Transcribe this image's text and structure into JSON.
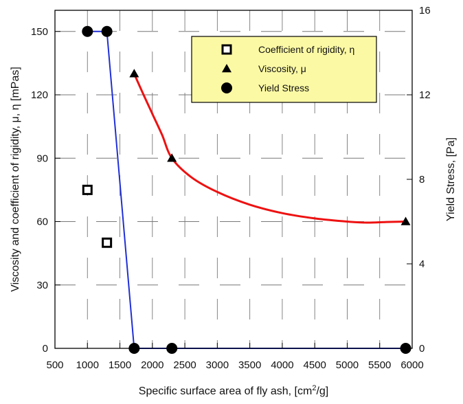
{
  "chart_data": {
    "type": "scatter",
    "xlabel": "Specific surface area of fly ash, [cm",
    "xlabel_sup": "2",
    "xlabel_tail": "/g]",
    "ylabel_left": "Viscosity and coefficient of rigidity, μ, η [mPas]",
    "ylabel_right": "Yield Stress, [Pa]",
    "xlim": [
      500,
      6000
    ],
    "ylim_left": [
      0,
      160
    ],
    "ylim_right": [
      0,
      16
    ],
    "x_ticks": [
      500,
      1000,
      1500,
      2000,
      2500,
      3000,
      3500,
      4000,
      4500,
      5000,
      5500,
      6000
    ],
    "y_left_ticks": [
      0,
      30,
      60,
      90,
      120,
      150
    ],
    "y_right_ticks": [
      0,
      4,
      8,
      12,
      16
    ],
    "grid": true,
    "legend_position": "top-right",
    "series": [
      {
        "name": "Coefficient of rigidity, η",
        "marker": "open-square",
        "axis": "left",
        "color": "#000000",
        "points": [
          [
            1000,
            75
          ],
          [
            1300,
            50
          ]
        ]
      },
      {
        "name": "Viscosity, μ",
        "marker": "filled-triangle",
        "axis": "left",
        "color": "#000000",
        "points": [
          [
            1720,
            130
          ],
          [
            2300,
            90
          ],
          [
            5900,
            60
          ]
        ],
        "fit_color": "#ee1111",
        "fit_curve": [
          [
            1720,
            130
          ],
          [
            1850,
            121
          ],
          [
            2000,
            111
          ],
          [
            2150,
            101
          ],
          [
            2300,
            90
          ],
          [
            2600,
            81
          ],
          [
            3000,
            74
          ],
          [
            3500,
            68
          ],
          [
            4000,
            64
          ],
          [
            4500,
            61.5
          ],
          [
            5000,
            60
          ],
          [
            5300,
            59.5
          ],
          [
            5600,
            59.8
          ],
          [
            5900,
            60
          ]
        ]
      },
      {
        "name": "Yield Stress",
        "marker": "filled-circle",
        "axis": "right",
        "color": "#000000",
        "points": [
          [
            1000,
            15
          ],
          [
            1300,
            15
          ],
          [
            1720,
            0
          ],
          [
            2300,
            0
          ],
          [
            5900,
            0
          ]
        ],
        "line_color": "#1f2fd6",
        "line": [
          [
            1000,
            15
          ],
          [
            1300,
            15
          ],
          [
            1720,
            0
          ],
          [
            2300,
            0
          ],
          [
            5900,
            0
          ]
        ]
      }
    ]
  }
}
